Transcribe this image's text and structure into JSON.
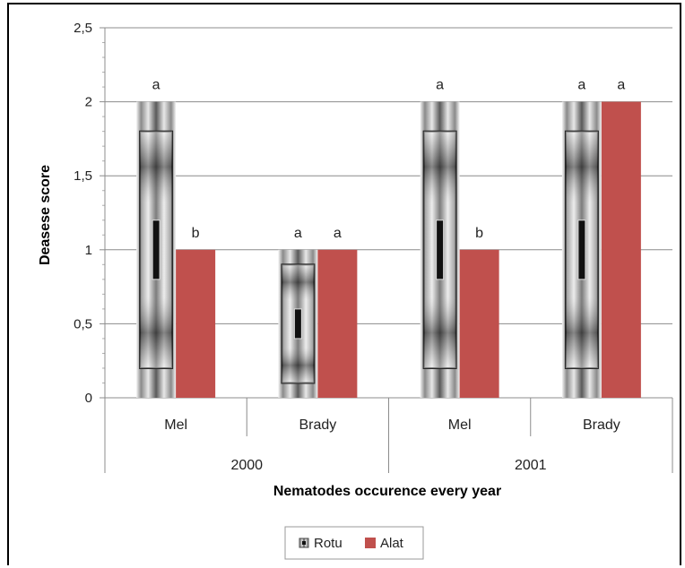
{
  "chart_data": {
    "type": "bar",
    "xlabel": "Nematodes  occurence every year",
    "ylabel": "Deasese score",
    "ylim": [
      0,
      2.5
    ],
    "yticks": [
      "0",
      "0,5",
      "1",
      "1,5",
      "2",
      "2,5"
    ],
    "groups": [
      {
        "label": "2000",
        "categories": [
          "Mel",
          "Brady"
        ]
      },
      {
        "label": "2001",
        "categories": [
          "Mel",
          "Brady"
        ]
      }
    ],
    "categories": [
      "Mel",
      "Brady",
      "Mel",
      "Brady"
    ],
    "series": [
      {
        "name": "Rotu",
        "values": [
          2,
          1,
          2,
          2
        ],
        "letters": [
          "a",
          "a",
          "a",
          "a"
        ]
      },
      {
        "name": "Alat",
        "values": [
          1,
          1,
          1,
          2
        ],
        "letters": [
          "b",
          "a",
          "b",
          "a"
        ]
      }
    ],
    "grid": true,
    "legend_position": "bottom",
    "colors": {
      "Rotu": "#bdbdbd",
      "Alat": "#c0504d"
    }
  }
}
